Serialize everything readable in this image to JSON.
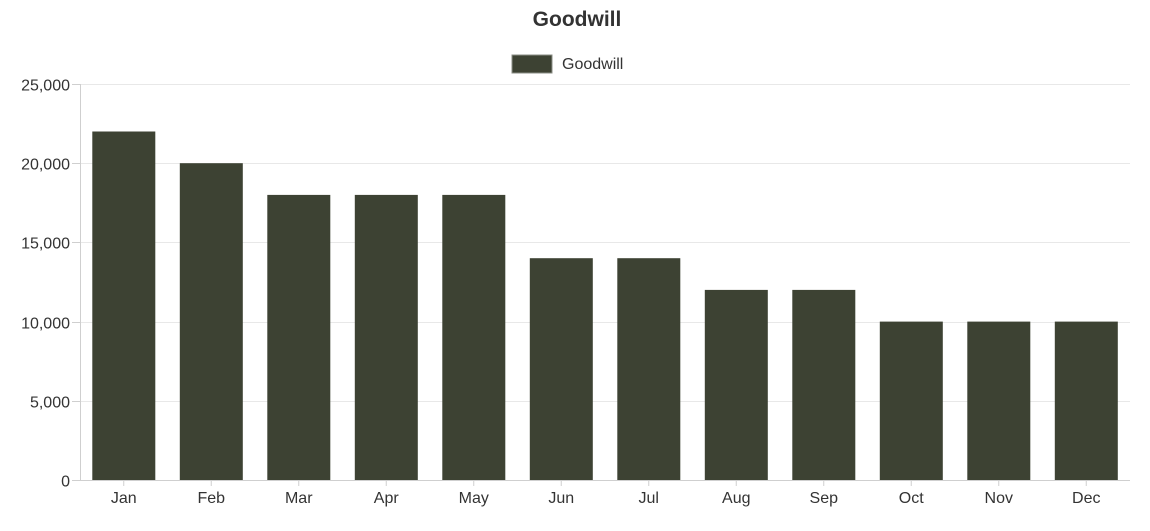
{
  "chart_data": {
    "type": "bar",
    "title": "Goodwill",
    "xlabel": "",
    "ylabel": "",
    "categories": [
      "Jan",
      "Feb",
      "Mar",
      "Apr",
      "May",
      "Jun",
      "Jul",
      "Aug",
      "Sep",
      "Oct",
      "Nov",
      "Dec"
    ],
    "series": [
      {
        "name": "Goodwill",
        "color": "#3d4233",
        "values": [
          22000,
          20000,
          18000,
          18000,
          18000,
          14000,
          14000,
          12000,
          12000,
          10000,
          10000,
          10000
        ]
      }
    ],
    "ylim": [
      0,
      25000
    ],
    "yticks": [
      0,
      5000,
      10000,
      15000,
      20000,
      25000
    ],
    "ytick_labels": [
      "0",
      "5,000",
      "10,000",
      "15,000",
      "20,000",
      "25,000"
    ],
    "grid": true,
    "legend": "top-center"
  }
}
